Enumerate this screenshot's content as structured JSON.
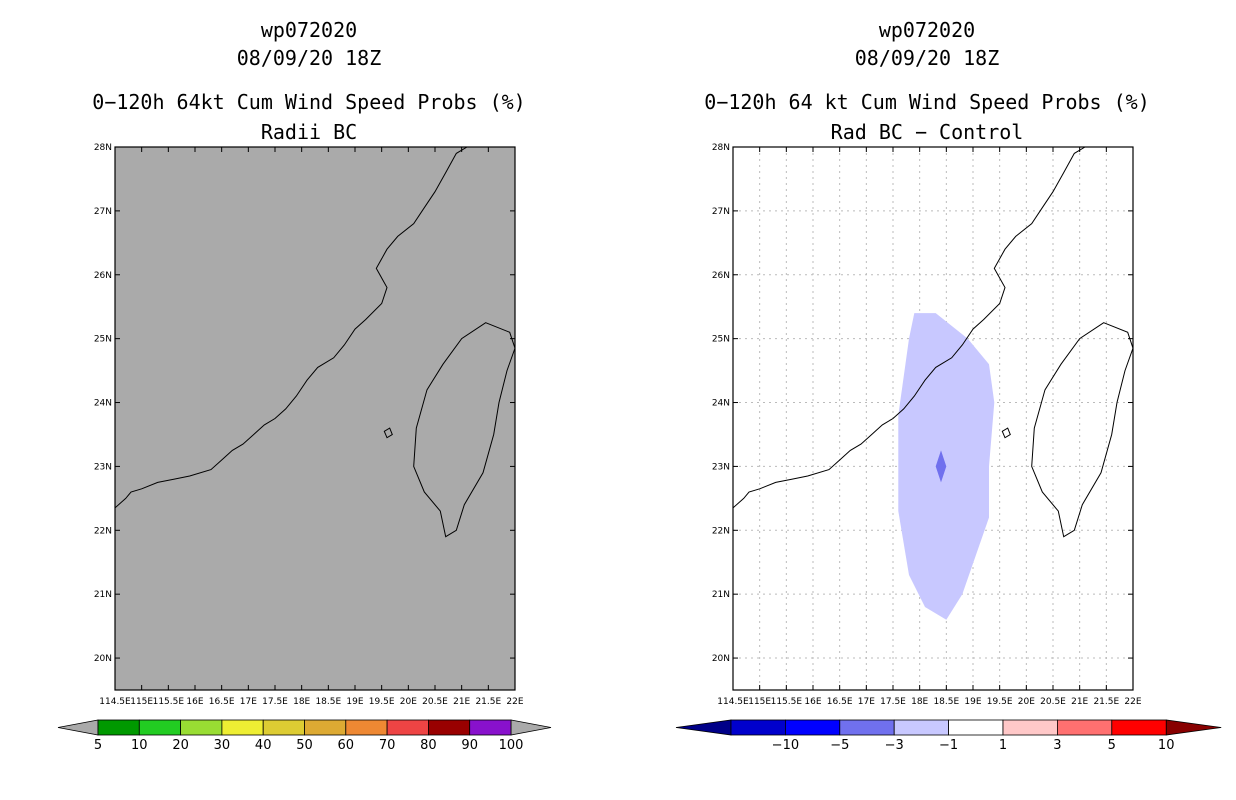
{
  "chart_data": [
    {
      "type": "contour-map",
      "title_line1": "wp072020",
      "title_line2": "08/09/20 18Z",
      "title_line3": "0−120h 64kt Cum Wind Speed Probs (%)",
      "subtitle": "Radii BC",
      "background_fill": "#aaaaaa",
      "xlim": [
        114.5,
        122
      ],
      "ylim": [
        19.5,
        28
      ],
      "x_ticks": [
        "114.5E",
        "115E",
        "115.5E",
        "16E",
        "16.5E",
        "17E",
        "17.5E",
        "18E",
        "18.5E",
        "19E",
        "19.5E",
        "20E",
        "20.5E",
        "21E",
        "21.5E",
        "22E"
      ],
      "y_ticks": [
        "20N",
        "21N",
        "22N",
        "23N",
        "24N",
        "25N",
        "26N",
        "27N",
        "28N"
      ],
      "gridlines": false,
      "colorbar": {
        "labels": [
          "5",
          "10",
          "20",
          "30",
          "40",
          "50",
          "60",
          "70",
          "80",
          "90",
          "100"
        ],
        "colors": [
          "#009900",
          "#22cc22",
          "#99dd33",
          "#eeee33",
          "#ddcc33",
          "#ddaa33",
          "#ee8833",
          "#ee4444",
          "#990000",
          "#8811cc"
        ],
        "end_color": "#aaaaaa"
      }
    },
    {
      "type": "contour-map",
      "title_line1": "wp072020",
      "title_line2": "08/09/20 18Z",
      "title_line3": "0−120h 64 kt Cum Wind Speed Probs (%)",
      "subtitle": "Rad BC − Control",
      "background_fill": "#ffffff",
      "xlim": [
        114.5,
        122
      ],
      "ylim": [
        19.5,
        28
      ],
      "x_ticks": [
        "114.5E",
        "115E",
        "115.5E",
        "16E",
        "16.5E",
        "17E",
        "17.5E",
        "18E",
        "18.5E",
        "19E",
        "19.5E",
        "20E",
        "20.5E",
        "21E",
        "21.5E",
        "22E"
      ],
      "y_ticks": [
        "20N",
        "21N",
        "22N",
        "23N",
        "24N",
        "25N",
        "26N",
        "27N",
        "28N"
      ],
      "gridlines": true,
      "contours": [
        {
          "level_range": "-3 to -1",
          "color": "#c8c8ff",
          "polygon": [
            [
              117.9,
              25.4
            ],
            [
              118.3,
              25.4
            ],
            [
              118.9,
              25.0
            ],
            [
              119.3,
              24.6
            ],
            [
              119.4,
              24.0
            ],
            [
              119.3,
              23.0
            ],
            [
              119.3,
              22.2
            ],
            [
              118.8,
              21.0
            ],
            [
              118.5,
              20.6
            ],
            [
              118.1,
              20.8
            ],
            [
              117.8,
              21.3
            ],
            [
              117.6,
              22.3
            ],
            [
              117.6,
              23.8
            ],
            [
              117.8,
              25.0
            ]
          ]
        },
        {
          "level_range": "-5 to -3",
          "color": "#7070ee",
          "polygon": [
            [
              118.4,
              23.25
            ],
            [
              118.5,
              23.0
            ],
            [
              118.4,
              22.75
            ],
            [
              118.3,
              23.0
            ]
          ]
        }
      ],
      "colorbar": {
        "labels": [
          "−10",
          "−5",
          "−3",
          "−1",
          "1",
          "3",
          "5",
          "10"
        ],
        "colors": [
          "#0000cc",
          "#0000ff",
          "#7070ee",
          "#c8c8ff",
          "#ffffff",
          "#ffc8c8",
          "#ff7070",
          "#ff0000"
        ],
        "end_left_color": "#000088",
        "end_right_color": "#880000"
      }
    }
  ]
}
